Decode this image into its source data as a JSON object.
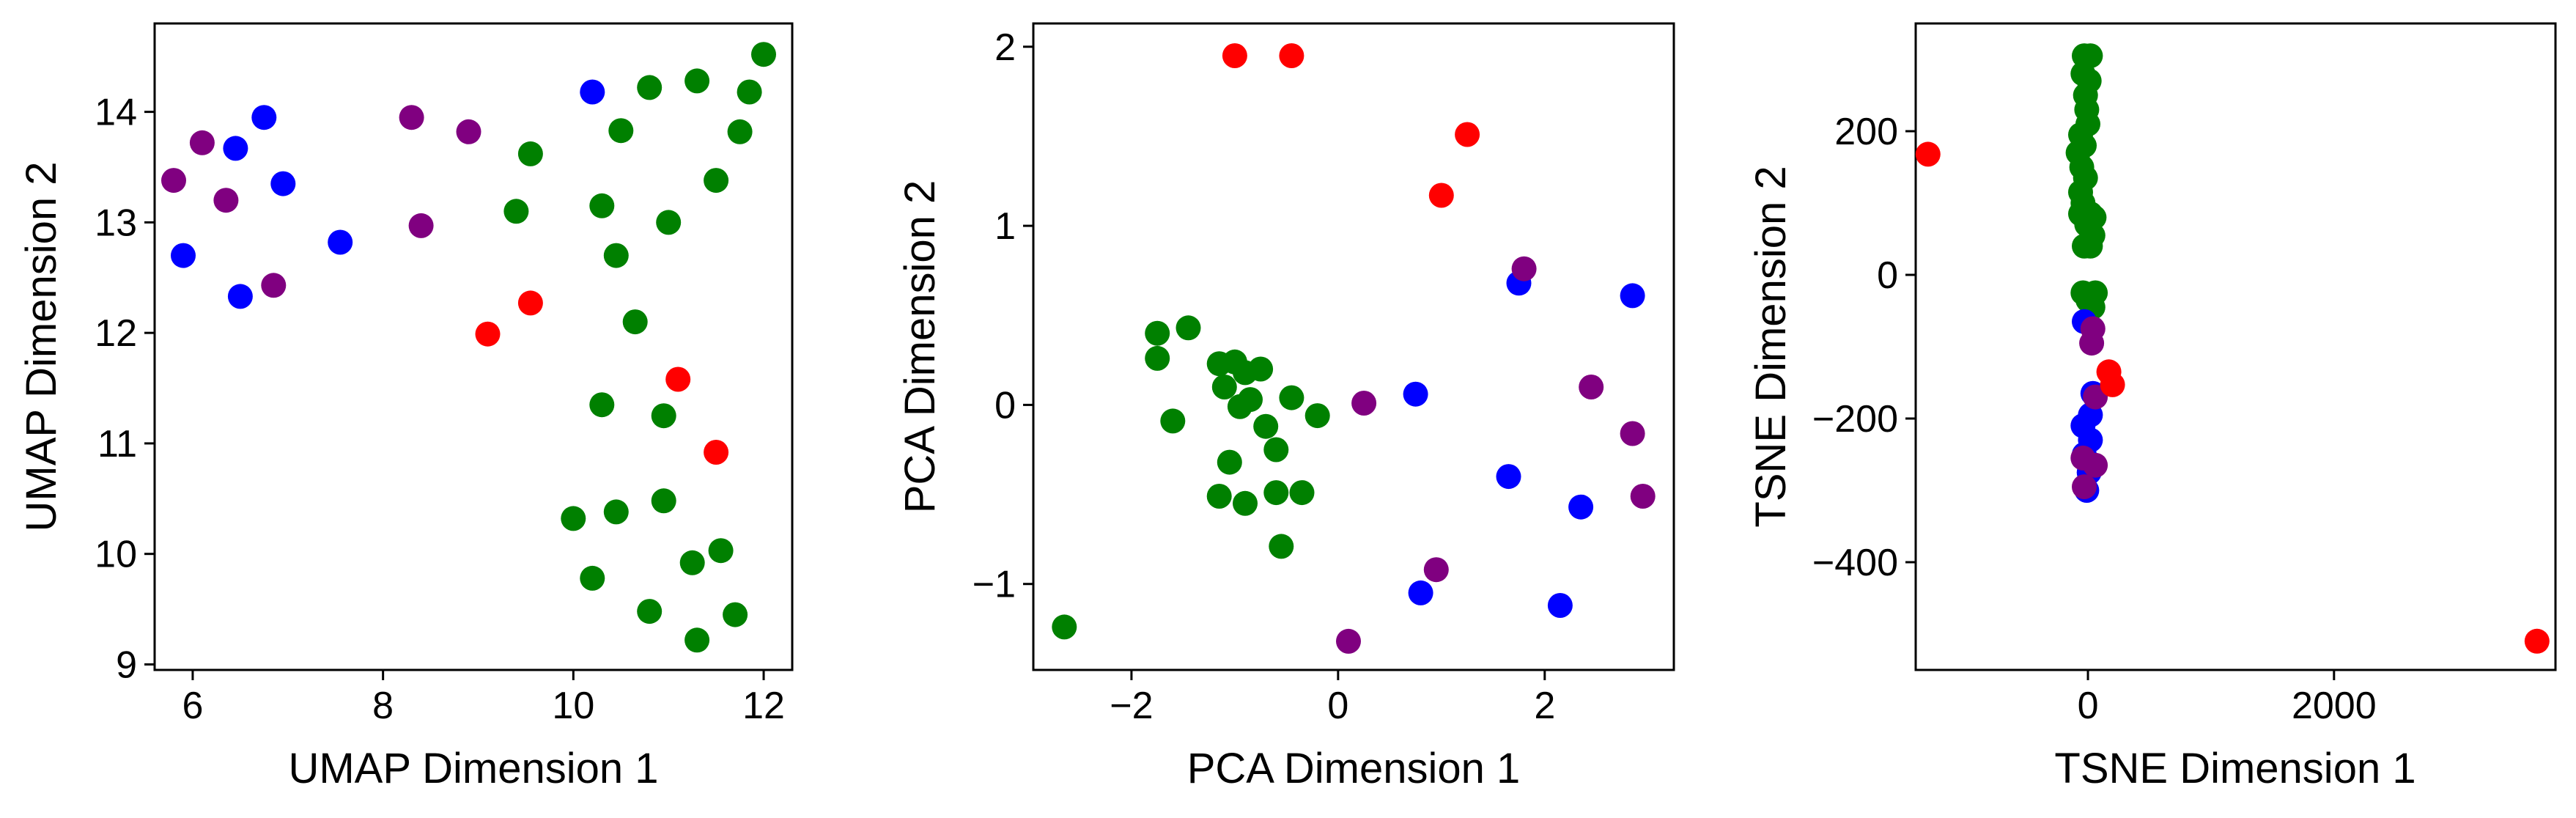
{
  "colors": {
    "green": "#008000",
    "blue": "#0000ff",
    "purple": "#800080",
    "red": "#ff0000"
  },
  "chart_data": [
    {
      "type": "scatter",
      "xlabel": "UMAP Dimension 1",
      "ylabel": "UMAP Dimension 2",
      "xlim": [
        5.6,
        12.3
      ],
      "ylim": [
        8.95,
        14.8
      ],
      "xticks": [
        6,
        8,
        10,
        12
      ],
      "yticks": [
        9,
        10,
        11,
        12,
        13,
        14
      ],
      "xtick_labels": [
        "6",
        "8",
        "10",
        "12"
      ],
      "ytick_labels": [
        "9",
        "10",
        "11",
        "12",
        "13",
        "14"
      ],
      "grid": false,
      "series": [
        {
          "color": "#008000",
          "points": [
            [
              12.0,
              14.52
            ],
            [
              11.3,
              14.28
            ],
            [
              10.8,
              14.22
            ],
            [
              11.85,
              14.18
            ],
            [
              10.5,
              13.83
            ],
            [
              11.75,
              13.82
            ],
            [
              9.55,
              13.62
            ],
            [
              11.5,
              13.38
            ],
            [
              10.3,
              13.15
            ],
            [
              9.4,
              13.1
            ],
            [
              11.0,
              13.0
            ],
            [
              10.45,
              12.7
            ],
            [
              10.65,
              12.1
            ],
            [
              10.3,
              11.35
            ],
            [
              10.95,
              11.25
            ],
            [
              10.95,
              10.48
            ],
            [
              10.45,
              10.38
            ],
            [
              10.0,
              10.32
            ],
            [
              11.55,
              10.03
            ],
            [
              11.25,
              9.92
            ],
            [
              10.2,
              9.78
            ],
            [
              10.8,
              9.48
            ],
            [
              11.7,
              9.45
            ],
            [
              11.3,
              9.22
            ]
          ]
        },
        {
          "color": "#0000ff",
          "points": [
            [
              10.2,
              14.18
            ],
            [
              6.75,
              13.95
            ],
            [
              6.45,
              13.67
            ],
            [
              6.95,
              13.35
            ],
            [
              7.55,
              12.82
            ],
            [
              5.9,
              12.7
            ],
            [
              6.5,
              12.33
            ]
          ]
        },
        {
          "color": "#800080",
          "points": [
            [
              8.3,
              13.95
            ],
            [
              8.9,
              13.82
            ],
            [
              6.1,
              13.72
            ],
            [
              5.8,
              13.38
            ],
            [
              6.35,
              13.2
            ],
            [
              8.4,
              12.97
            ],
            [
              6.85,
              12.43
            ]
          ]
        },
        {
          "color": "#ff0000",
          "points": [
            [
              9.55,
              12.27
            ],
            [
              9.1,
              11.99
            ],
            [
              11.1,
              11.58
            ],
            [
              11.5,
              10.92
            ]
          ]
        }
      ]
    },
    {
      "type": "scatter",
      "xlabel": "PCA Dimension 1",
      "ylabel": "PCA Dimension 2",
      "xlim": [
        -2.95,
        3.25
      ],
      "ylim": [
        -1.48,
        2.13
      ],
      "xticks": [
        -2,
        0,
        2
      ],
      "yticks": [
        -1,
        0,
        1,
        2
      ],
      "xtick_labels": [
        "−2",
        "0",
        "2"
      ],
      "ytick_labels": [
        "−1",
        "0",
        "1",
        "2"
      ],
      "grid": false,
      "series": [
        {
          "color": "#008000",
          "points": [
            [
              -1.75,
              0.4
            ],
            [
              -1.45,
              0.43
            ],
            [
              -1.75,
              0.26
            ],
            [
              -1.15,
              0.23
            ],
            [
              -1.0,
              0.24
            ],
            [
              -0.9,
              0.18
            ],
            [
              -0.75,
              0.2
            ],
            [
              -1.1,
              0.1
            ],
            [
              -0.85,
              0.03
            ],
            [
              -0.95,
              -0.01
            ],
            [
              -0.45,
              0.04
            ],
            [
              -0.2,
              -0.06
            ],
            [
              -0.7,
              -0.12
            ],
            [
              -1.6,
              -0.09
            ],
            [
              -0.6,
              -0.25
            ],
            [
              -1.05,
              -0.32
            ],
            [
              -1.15,
              -0.51
            ],
            [
              -0.9,
              -0.55
            ],
            [
              -0.6,
              -0.49
            ],
            [
              -0.35,
              -0.49
            ],
            [
              -0.55,
              -0.79
            ],
            [
              -2.65,
              -1.24
            ]
          ]
        },
        {
          "color": "#0000ff",
          "points": [
            [
              1.75,
              0.68
            ],
            [
              2.85,
              0.61
            ],
            [
              0.75,
              0.06
            ],
            [
              1.65,
              -0.4
            ],
            [
              2.35,
              -0.57
            ],
            [
              0.8,
              -1.05
            ],
            [
              2.15,
              -1.12
            ]
          ]
        },
        {
          "color": "#800080",
          "points": [
            [
              1.8,
              0.76
            ],
            [
              0.25,
              0.01
            ],
            [
              2.45,
              0.1
            ],
            [
              2.85,
              -0.16
            ],
            [
              2.95,
              -0.51
            ],
            [
              0.95,
              -0.92
            ],
            [
              0.1,
              -1.32
            ]
          ]
        },
        {
          "color": "#ff0000",
          "points": [
            [
              -1.0,
              1.95
            ],
            [
              -0.45,
              1.95
            ],
            [
              1.25,
              1.51
            ],
            [
              1.0,
              1.17
            ]
          ]
        }
      ]
    },
    {
      "type": "scatter",
      "xlabel": "TSNE Dimension 1",
      "ylabel": "TSNE Dimension 2",
      "xlim": [
        -1400,
        3800
      ],
      "ylim": [
        -550,
        350
      ],
      "xticks": [
        0,
        2000
      ],
      "yticks": [
        -400,
        -200,
        0,
        200
      ],
      "xtick_labels": [
        "0",
        "2000"
      ],
      "ytick_labels": [
        "−400",
        "−200",
        "0",
        "200"
      ],
      "grid": false,
      "series": [
        {
          "color": "#008000",
          "points": [
            [
              -30,
              305
            ],
            [
              20,
              305
            ],
            [
              -40,
              280
            ],
            [
              10,
              270
            ],
            [
              -20,
              250
            ],
            [
              -10,
              230
            ],
            [
              0,
              210
            ],
            [
              -60,
              195
            ],
            [
              -30,
              180
            ],
            [
              -80,
              170
            ],
            [
              -50,
              150
            ],
            [
              -20,
              135
            ],
            [
              -60,
              115
            ],
            [
              -40,
              100
            ],
            [
              -60,
              85
            ],
            [
              20,
              85
            ],
            [
              -10,
              70
            ],
            [
              50,
              80
            ],
            [
              40,
              55
            ],
            [
              -30,
              40
            ],
            [
              20,
              40
            ],
            [
              -40,
              -25
            ],
            [
              60,
              -25
            ],
            [
              0,
              -35
            ],
            [
              40,
              -45
            ]
          ]
        },
        {
          "color": "#0000ff",
          "points": [
            [
              -30,
              -65
            ],
            [
              40,
              -165
            ],
            [
              20,
              -195
            ],
            [
              -40,
              -210
            ],
            [
              20,
              -230
            ],
            [
              -30,
              -250
            ],
            [
              10,
              -275
            ],
            [
              -10,
              -300
            ]
          ]
        },
        {
          "color": "#800080",
          "points": [
            [
              40,
              -75
            ],
            [
              30,
              -95
            ],
            [
              60,
              -170
            ],
            [
              -40,
              -255
            ],
            [
              60,
              -265
            ],
            [
              -30,
              -295
            ]
          ]
        },
        {
          "color": "#ff0000",
          "points": [
            [
              -1300,
              168
            ],
            [
              170,
              -135
            ],
            [
              200,
              -153
            ],
            [
              3650,
              -510
            ]
          ]
        }
      ]
    }
  ]
}
